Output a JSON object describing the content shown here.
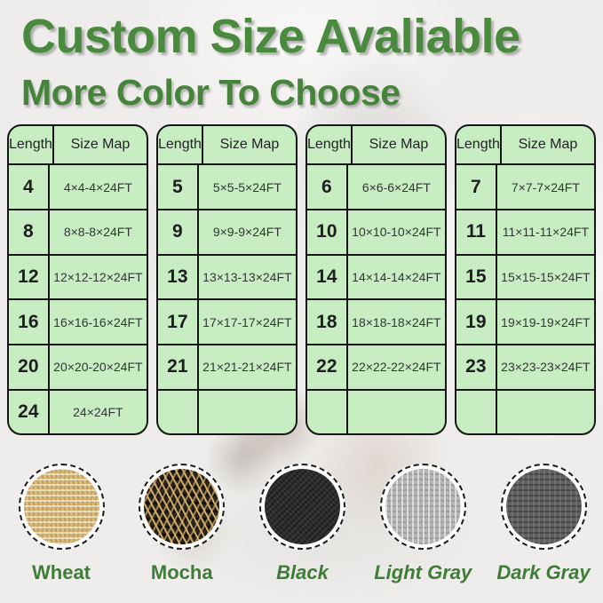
{
  "header": {
    "title": "Custom Size Avaliable",
    "subtitle": "More Color To Choose",
    "accent_green": "#4a8a3e"
  },
  "table_header": {
    "length": "Length",
    "size_map": "Size Map"
  },
  "table_style": {
    "cell_background": "#c9edc3",
    "border_color": "#161616"
  },
  "tables": [
    {
      "rows": [
        {
          "length": "4",
          "size": "4×4-4×24FT"
        },
        {
          "length": "8",
          "size": "8×8-8×24FT"
        },
        {
          "length": "12",
          "size": "12×12-12×24FT"
        },
        {
          "length": "16",
          "size": "16×16-16×24FT"
        },
        {
          "length": "20",
          "size": "20×20-20×24FT"
        },
        {
          "length": "24",
          "size": "24×24FT"
        }
      ]
    },
    {
      "rows": [
        {
          "length": "5",
          "size": "5×5-5×24FT"
        },
        {
          "length": "9",
          "size": "9×9-9×24FT"
        },
        {
          "length": "13",
          "size": "13×13-13×24FT"
        },
        {
          "length": "17",
          "size": "17×17-17×24FT"
        },
        {
          "length": "21",
          "size": "21×21-21×24FT"
        },
        {
          "length": "",
          "size": ""
        }
      ]
    },
    {
      "rows": [
        {
          "length": "6",
          "size": "6×6-6×24FT"
        },
        {
          "length": "10",
          "size": "10×10-10×24FT"
        },
        {
          "length": "14",
          "size": "14×14-14×24FT"
        },
        {
          "length": "18",
          "size": "18×18-18×24FT"
        },
        {
          "length": "22",
          "size": "22×22-22×24FT"
        },
        {
          "length": "",
          "size": ""
        }
      ]
    },
    {
      "rows": [
        {
          "length": "7",
          "size": "7×7-7×24FT"
        },
        {
          "length": "11",
          "size": "11×11-11×24FT"
        },
        {
          "length": "15",
          "size": "15×15-15×24FT"
        },
        {
          "length": "19",
          "size": "19×19-19×24FT"
        },
        {
          "length": "23",
          "size": "23×23-23×24FT"
        },
        {
          "length": "",
          "size": ""
        }
      ]
    }
  ],
  "swatches": [
    {
      "label": "Wheat",
      "color": "#d9bd80"
    },
    {
      "label": "Mocha",
      "color": "#2a241c"
    },
    {
      "label": "Black",
      "color": "#2e2e2c"
    },
    {
      "label": "Light Gray",
      "color": "#b7b7b5"
    },
    {
      "label": "Dark Gray",
      "color": "#5f5f5d"
    }
  ],
  "label_color": "#3e7c38"
}
